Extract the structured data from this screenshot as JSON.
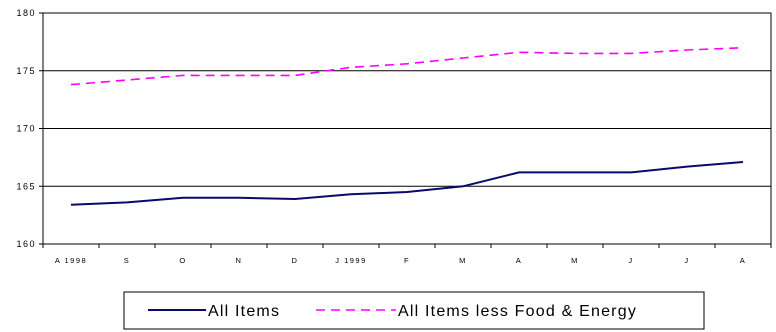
{
  "chart_data": {
    "type": "line",
    "categories": [
      "A 1998",
      "S",
      "O",
      "N",
      "D",
      "J 1999",
      "F",
      "M",
      "A",
      "M",
      "J",
      "J",
      "A"
    ],
    "ylim": [
      160,
      180
    ],
    "yticks": [
      160,
      165,
      170,
      175,
      180
    ],
    "grid": "horizontal",
    "legend_position": "bottom",
    "series": [
      {
        "name": "All Items",
        "style": "solid",
        "color": "#0a0a6b",
        "values": [
          163.4,
          163.6,
          164.0,
          164.0,
          163.9,
          164.3,
          164.5,
          165.0,
          166.2,
          166.2,
          166.2,
          166.7,
          167.1
        ]
      },
      {
        "name": "All Items less Food & Energy",
        "style": "dashed",
        "color": "#ff00ff",
        "values": [
          173.8,
          174.2,
          174.6,
          174.6,
          174.6,
          175.3,
          175.6,
          176.1,
          176.6,
          176.5,
          176.5,
          176.8,
          177.0
        ]
      }
    ]
  }
}
